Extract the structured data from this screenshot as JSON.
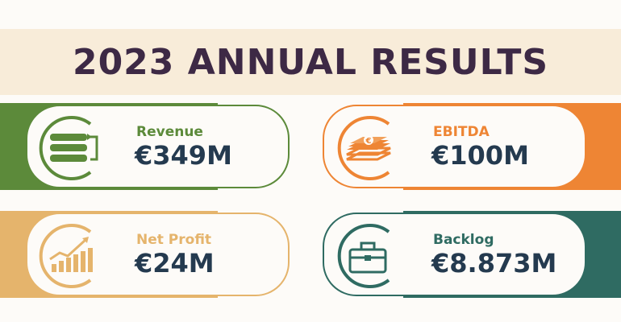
{
  "title": "2023 ANNUAL RESULTS",
  "colors": {
    "banner_bg": "#f8ecd9",
    "title": "#3d2945",
    "value_text": "#243a4f",
    "green": "#5c8a3a",
    "orange": "#ee8534",
    "sand": "#e5b46c",
    "teal": "#2f6b62"
  },
  "cards": [
    {
      "label": "Revenue",
      "value": "€349M",
      "icon": "revenue-bars-icon"
    },
    {
      "label": "EBITDA",
      "value": "€100M",
      "icon": "euro-stack-icon"
    },
    {
      "label": "Net Profit",
      "value": "€24M",
      "icon": "growth-chart-icon"
    },
    {
      "label": "Backlog",
      "value": "€8.873M",
      "icon": "briefcase-icon"
    }
  ]
}
